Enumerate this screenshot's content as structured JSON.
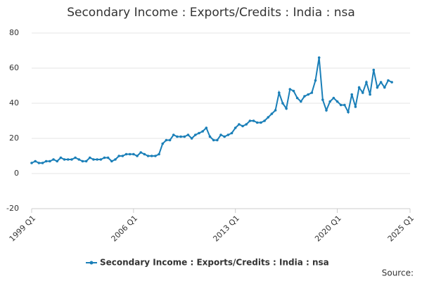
{
  "chart_data": {
    "type": "line",
    "title": "Secondary Income : Exports/Credits : India : nsa",
    "source_label": "Source:",
    "x": [
      1999,
      1999.25,
      1999.5,
      1999.75,
      2000,
      2000.25,
      2000.5,
      2000.75,
      2001,
      2001.25,
      2001.5,
      2001.75,
      2002,
      2002.25,
      2002.5,
      2002.75,
      2003,
      2003.25,
      2003.5,
      2003.75,
      2004,
      2004.25,
      2004.5,
      2004.75,
      2005,
      2005.25,
      2005.5,
      2005.75,
      2006,
      2006.25,
      2006.5,
      2006.75,
      2007,
      2007.25,
      2007.5,
      2007.75,
      2008,
      2008.25,
      2008.5,
      2008.75,
      2009,
      2009.25,
      2009.5,
      2009.75,
      2010,
      2010.25,
      2010.5,
      2010.75,
      2011,
      2011.25,
      2011.5,
      2011.75,
      2012,
      2012.25,
      2012.5,
      2012.75,
      2013,
      2013.25,
      2013.5,
      2013.75,
      2014,
      2014.25,
      2014.5,
      2014.75,
      2015,
      2015.25,
      2015.5,
      2015.75,
      2016,
      2016.25,
      2016.5,
      2016.75,
      2017,
      2017.25,
      2017.5,
      2017.75,
      2018,
      2018.25,
      2018.5,
      2018.75,
      2019,
      2019.25,
      2019.5,
      2019.75,
      2020,
      2020.25,
      2020.5,
      2020.75,
      2021,
      2021.25,
      2021.5,
      2021.75,
      2022,
      2022.25,
      2022.5,
      2022.75,
      2023,
      2023.25,
      2023.5,
      2023.75
    ],
    "series": [
      {
        "name": "Secondary Income : Exports/Credits : India : nsa",
        "color": "#1a7fb8",
        "values": [
          6,
          7,
          6,
          6,
          7,
          7,
          8,
          7,
          9,
          8,
          8,
          8,
          9,
          8,
          7,
          7,
          9,
          8,
          8,
          8,
          9,
          9,
          7,
          8,
          10,
          10,
          11,
          11,
          11,
          10,
          12,
          11,
          10,
          10,
          10,
          11,
          17,
          19,
          19,
          22,
          21,
          21,
          21,
          22,
          20,
          22,
          23,
          24,
          26,
          21,
          19,
          19,
          22,
          21,
          22,
          23,
          26,
          28,
          27,
          28,
          30,
          30,
          29,
          29,
          30,
          32,
          34,
          36,
          46,
          40,
          37,
          48,
          47,
          43,
          41,
          44,
          45,
          46,
          53,
          66,
          42,
          36,
          41,
          43,
          41,
          39,
          39,
          35,
          45,
          38,
          49,
          46,
          52,
          45,
          59,
          49,
          52,
          49,
          53,
          52
        ]
      }
    ],
    "xlim": [
      1999,
      2025
    ],
    "xticks": [
      {
        "value": 1999,
        "label": "1999 Q1"
      },
      {
        "value": 2006,
        "label": "2006 Q1"
      },
      {
        "value": 2013,
        "label": "2013 Q1"
      },
      {
        "value": 2020,
        "label": "2020 Q1"
      },
      {
        "value": 2025,
        "label": "2025 Q1"
      }
    ],
    "ylim": [
      -20,
      80
    ],
    "yticks": [
      -20,
      0,
      20,
      40,
      60,
      80
    ],
    "grid": true
  }
}
